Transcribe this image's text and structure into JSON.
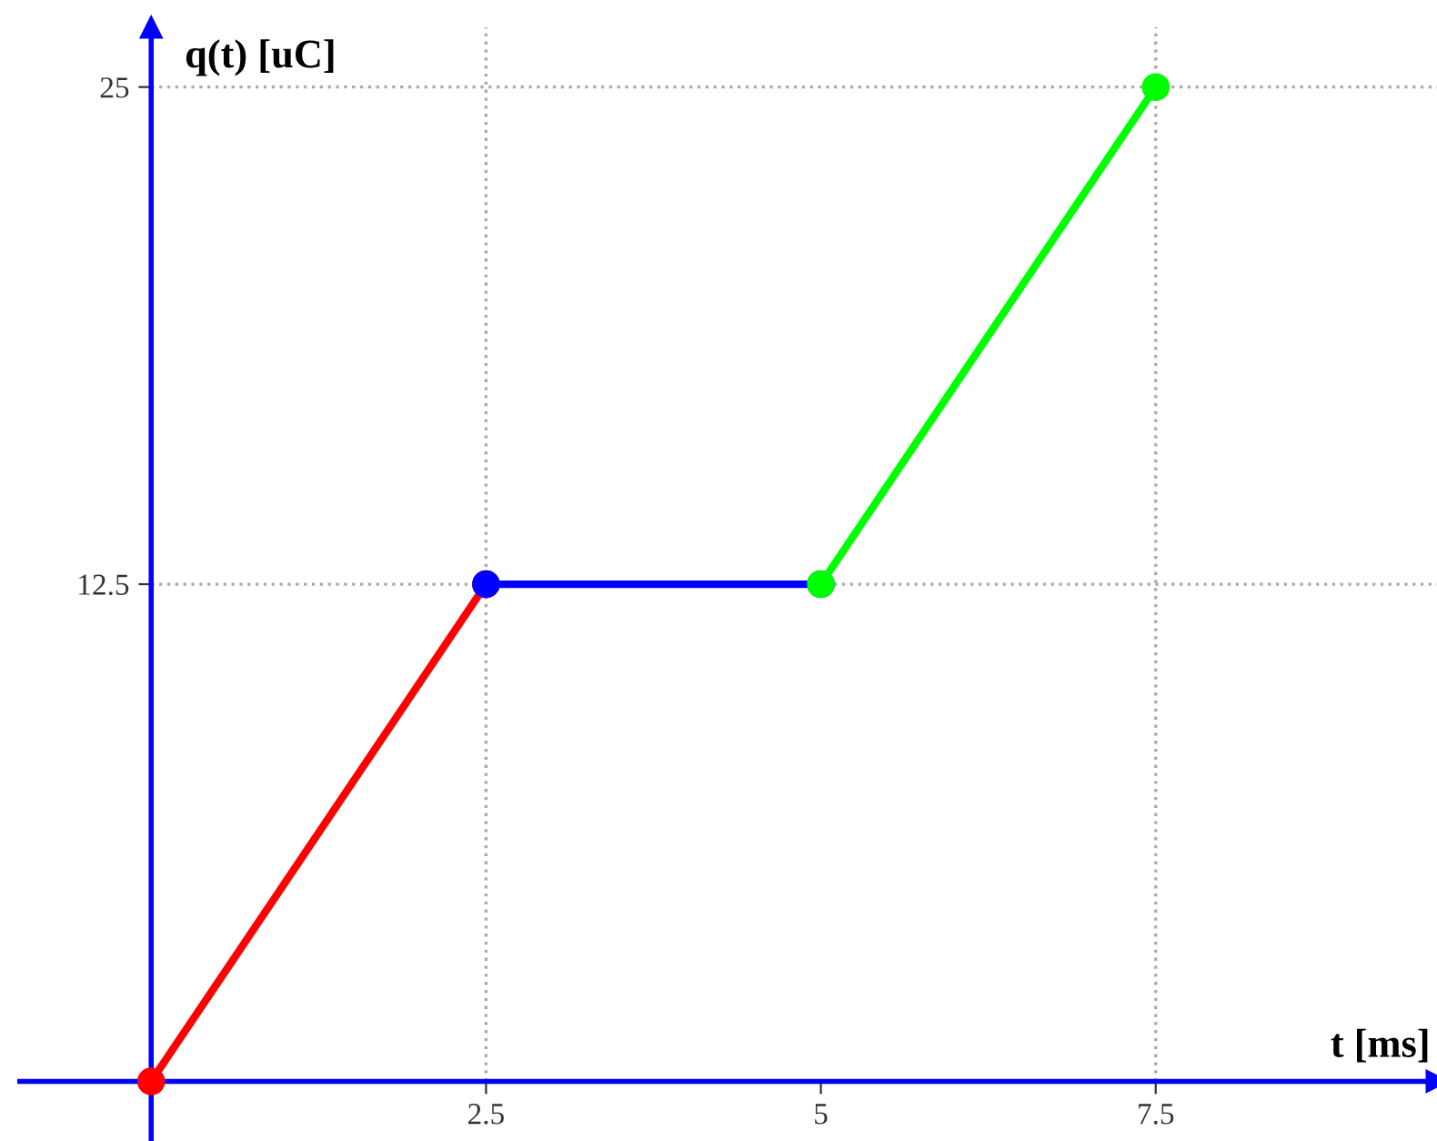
{
  "chart_data": {
    "type": "line",
    "xlabel": "t [ms]",
    "ylabel": "q(t) [uC]",
    "xlim": [
      -1.0,
      9.6
    ],
    "ylim": [
      -1.5,
      26.5
    ],
    "xticks": [
      {
        "value": 2.5,
        "label": "2.5"
      },
      5,
      {
        "value": 7.5,
        "label": "7.5"
      }
    ],
    "yticks": [
      {
        "value": 12.5,
        "label": "12.5"
      },
      25
    ],
    "grid": false,
    "marker": "circle",
    "line_style": "solid",
    "series": [
      {
        "color": "#ff0000",
        "x": [
          0,
          2.5
        ],
        "values": [
          0,
          12.5
        ]
      },
      {
        "color": "#0000ff",
        "x": [
          2.5,
          5
        ],
        "values": [
          12.5,
          12.5
        ]
      },
      {
        "color": "#00ff00",
        "x": [
          5,
          7.5
        ],
        "values": [
          12.5,
          25
        ]
      }
    ],
    "ref_lines": [
      {
        "axis": "x",
        "value": 0,
        "color": "#0000ff",
        "line_style": "solid"
      },
      {
        "axis": "y",
        "value": 0,
        "color": "#0000ff",
        "line_style": "solid"
      },
      {
        "axis": "x",
        "value": 2.5,
        "color": "#aaaaaa",
        "line_style": "dotted"
      },
      {
        "axis": "x",
        "value": 7.5,
        "color": "#aaaaaa",
        "line_style": "dotted"
      },
      {
        "axis": "y",
        "value": 12.5,
        "color": "#aaaaaa",
        "line_style": "dotted"
      },
      {
        "axis": "y",
        "value": 25,
        "color": "#aaaaaa",
        "line_style": "dotted"
      }
    ]
  }
}
